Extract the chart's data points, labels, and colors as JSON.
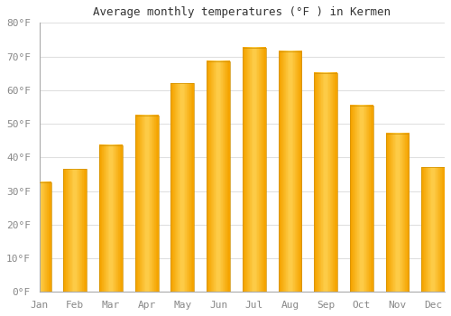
{
  "title": "Average monthly temperatures (°F ) in Kermen",
  "months": [
    "Jan",
    "Feb",
    "Mar",
    "Apr",
    "May",
    "Jun",
    "Jul",
    "Aug",
    "Sep",
    "Oct",
    "Nov",
    "Dec"
  ],
  "values": [
    32.5,
    36.5,
    43.5,
    52.5,
    62,
    68.5,
    72.5,
    71.5,
    65,
    55.5,
    47,
    37
  ],
  "bar_color_center": "#FFD150",
  "bar_color_edge": "#F5A400",
  "background_color": "#FFFFFF",
  "grid_color": "#E0E0E0",
  "tick_label_color": "#888888",
  "title_color": "#333333",
  "ylim": [
    0,
    80
  ],
  "ytick_step": 10,
  "bar_width": 0.65
}
